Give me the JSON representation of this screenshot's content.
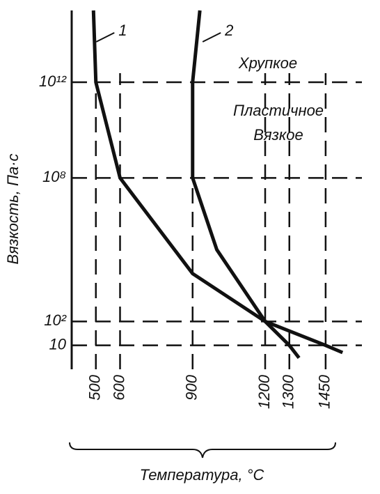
{
  "chart_data": {
    "type": "line",
    "x_label": "Температура, °C",
    "y_label": "Вязкость, Па·с",
    "log_y": true,
    "xlim": [
      400,
      1600
    ],
    "ylim": [
      1,
      1000000000000000
    ],
    "xticks": [
      500,
      600,
      900,
      1200,
      1300,
      1450
    ],
    "yticks": [
      10,
      {
        "value": 100,
        "label": "10²"
      },
      {
        "value": 100000000,
        "label": "10⁸"
      },
      {
        "value": 1000000000000,
        "label": "10¹²"
      }
    ],
    "grid": true,
    "annotations": [
      "Хрупкое",
      "Пластичное",
      "Вязкое"
    ],
    "series": [
      {
        "name": "1",
        "color": "#111111",
        "x": [
          490,
          500,
          600,
          900,
          1200,
          1450,
          1520
        ],
        "values": [
          1000000000000000,
          1000000000000,
          100000000,
          10000,
          100,
          10,
          5
        ]
      },
      {
        "name": "2",
        "color": "#111111",
        "x": [
          930,
          900,
          900,
          1000,
          1200,
          1300,
          1340
        ],
        "values": [
          1000000000000000,
          1000000000000,
          100000000,
          100000,
          100,
          10,
          3
        ]
      }
    ]
  }
}
